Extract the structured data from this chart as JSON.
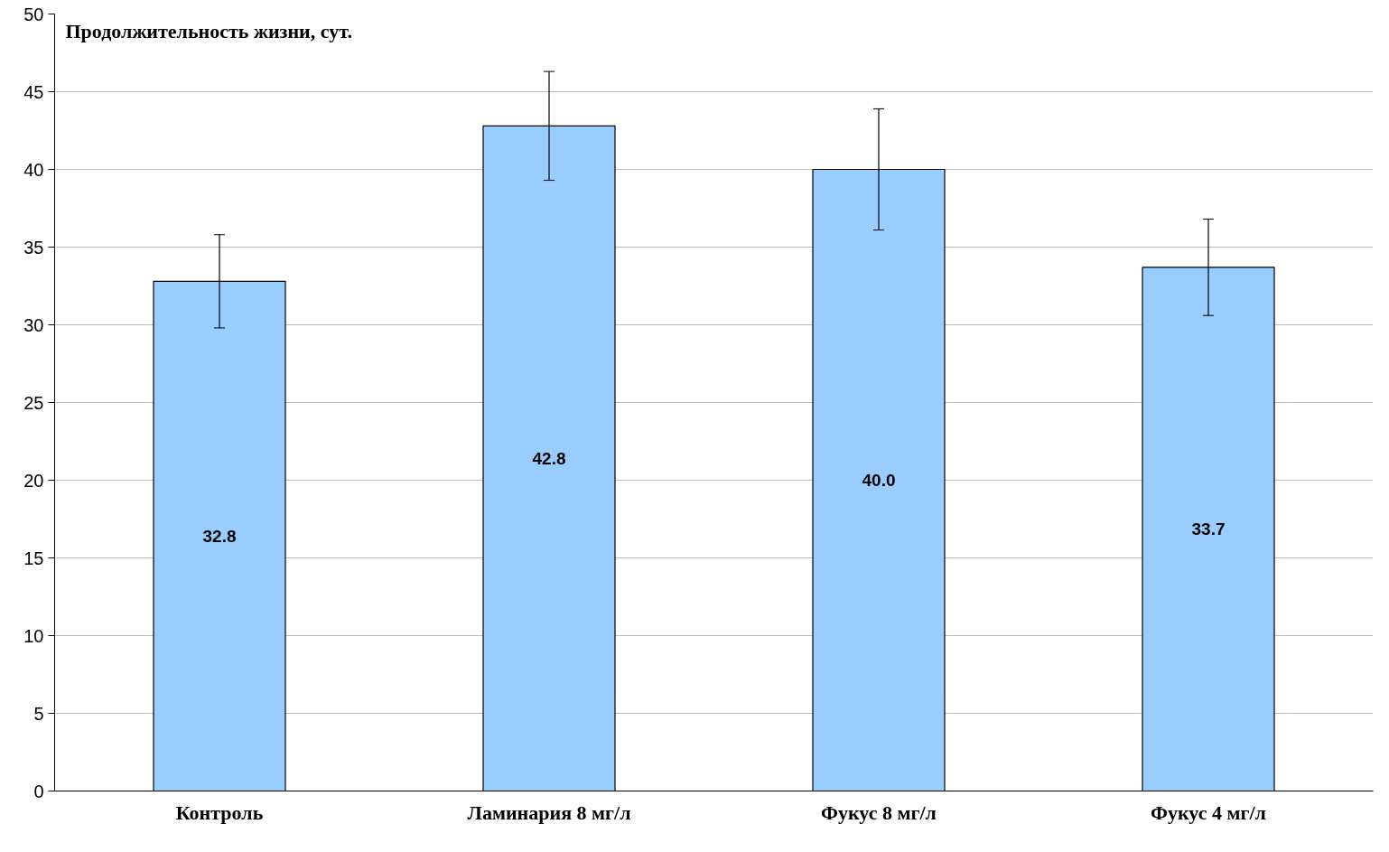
{
  "chart_data": {
    "type": "bar",
    "title": "Продолжительность жизни, сут.",
    "categories": [
      "Контроль",
      "Ламинария 8 мг/л",
      "Фукус 8 мг/л",
      "Фукус 4 мг/л"
    ],
    "values": [
      32.8,
      42.8,
      40.0,
      33.7
    ],
    "errors": [
      3.0,
      3.5,
      3.9,
      3.1
    ],
    "value_labels": [
      "32.8",
      "42.8",
      "40.0",
      "33.7"
    ],
    "color": "#99ccff",
    "ylim": [
      0,
      50
    ],
    "yticks": [
      0,
      5,
      10,
      15,
      20,
      25,
      30,
      35,
      40,
      45,
      50
    ],
    "grid": "y"
  }
}
